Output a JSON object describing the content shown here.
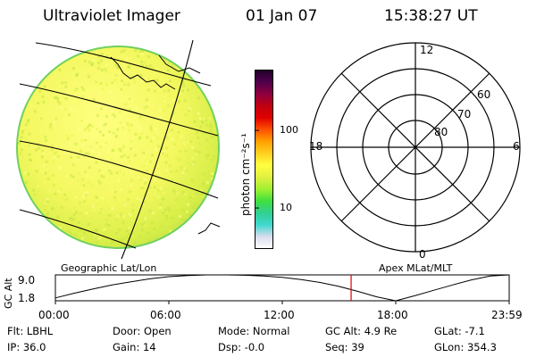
{
  "header": {
    "instrument": "Ultraviolet Imager",
    "date": "01 Jan 07",
    "time": "15:38:27 UT"
  },
  "colorbar": {
    "unit_label": "photon cm⁻²s⁻¹",
    "ticks": [
      {
        "label": "100",
        "value": 100
      },
      {
        "label": "10",
        "value": 10
      }
    ],
    "log_min": 3,
    "log_max": 600,
    "stops": [
      "#ffffff",
      "#d8dcec",
      "#40d8d0",
      "#30d090",
      "#40e040",
      "#a0f030",
      "#e0f040",
      "#ffff40",
      "#ffd020",
      "#ffa000",
      "#ff5000",
      "#e00000",
      "#c00010",
      "#8c0040",
      "#50004c",
      "#200028"
    ]
  },
  "polar_plot": {
    "mlt_labels": [
      "12",
      "18",
      "6",
      "0"
    ],
    "lat_labels": [
      "60",
      "70",
      "80"
    ],
    "lat_rings": [
      50,
      60,
      70,
      80
    ]
  },
  "labels": {
    "left_frame": "Geographic Lat/Lon",
    "right_frame": "Apex MLat/MLT"
  },
  "chart_data": {
    "type": "line",
    "ylabel": "GC Alt",
    "xlabel": "",
    "x_tick_labels": [
      "00:00",
      "06:00",
      "12:00",
      "18:00",
      "23:59"
    ],
    "x_ticks_hours": [
      0,
      6,
      12,
      18,
      24
    ],
    "xlim_hours": [
      0,
      24
    ],
    "y_tick_labels": [
      "9.0",
      "1.8"
    ],
    "ylim": [
      1.8,
      9.0
    ],
    "current_time_hours": 15.64,
    "series": [
      {
        "x": [
          0,
          1,
          2,
          3,
          4,
          5,
          6,
          7,
          8,
          9,
          10,
          11,
          12,
          13,
          14,
          15,
          16,
          17,
          18,
          19,
          20,
          21,
          22,
          23,
          24
        ],
        "y": [
          2.6,
          3.9,
          5.1,
          6.2,
          7.1,
          7.9,
          8.5,
          8.8,
          9.0,
          9.0,
          8.9,
          8.7,
          8.3,
          7.7,
          6.9,
          5.8,
          4.4,
          2.9,
          1.8,
          3.2,
          4.7,
          6.2,
          7.6,
          8.7,
          9.0
        ]
      }
    ]
  },
  "info": {
    "filter": "Flt: LBHL",
    "door": "Door: Open",
    "mode": "Mode: Normal",
    "gc_alt": "GC Alt: 4.9 Re",
    "glat": "GLat:  -7.1",
    "ip": "IP: 36.0",
    "gain": "Gain: 14",
    "dsp": "Dsp:   -0.0",
    "seq": "Seq: 39",
    "glon": "GLon: 354.3"
  }
}
